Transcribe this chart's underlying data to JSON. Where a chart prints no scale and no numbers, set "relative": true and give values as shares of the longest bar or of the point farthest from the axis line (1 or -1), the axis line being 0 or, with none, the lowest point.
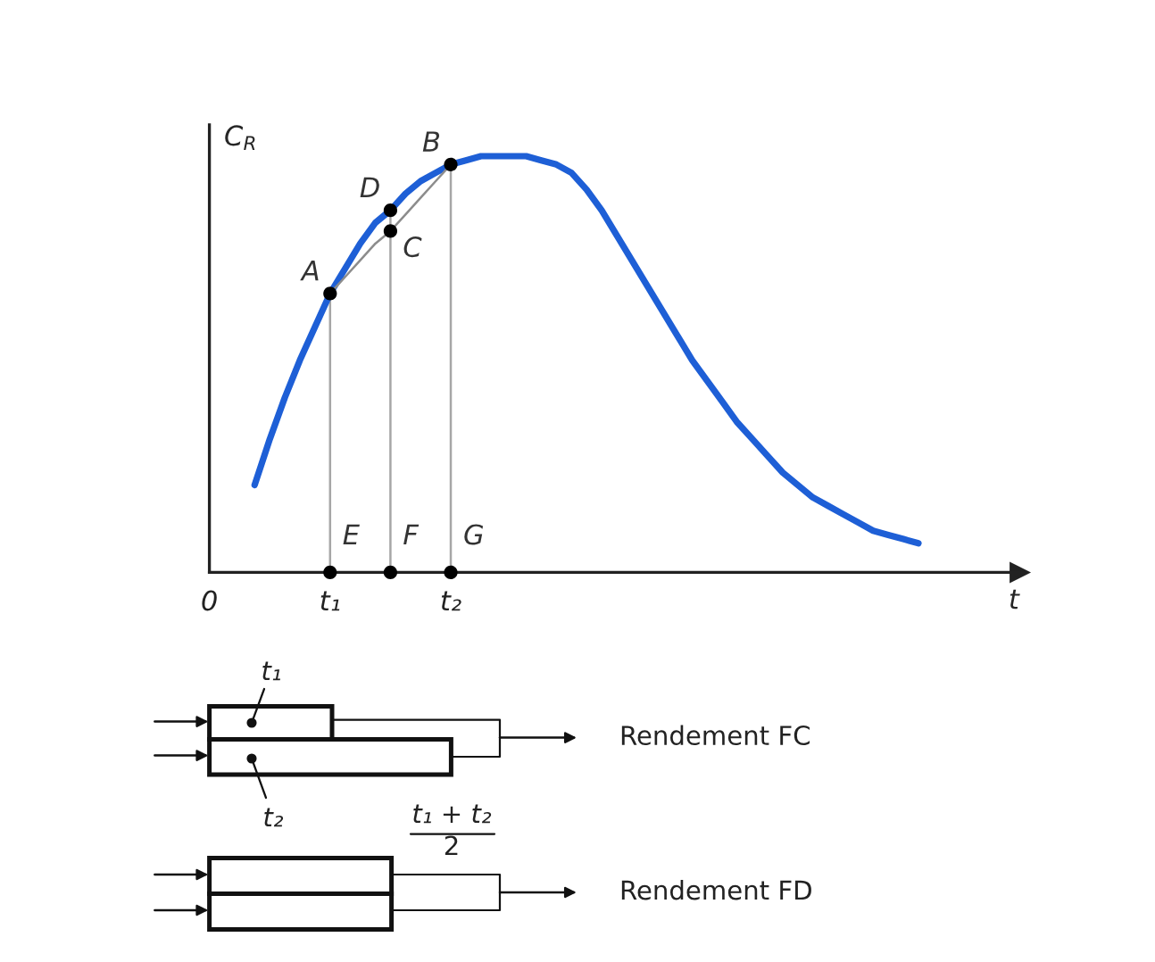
{
  "chart_data": {
    "type": "line",
    "relative": true,
    "ylabel": "C$_{R}$",
    "xlabel": "t",
    "tick_labels": "x",
    "categories": [
      "0",
      null,
      null,
      null,
      null,
      null,
      null,
      null,
      "t₁",
      null,
      null,
      null,
      null,
      null,
      null,
      null,
      "t₂",
      null,
      null,
      null,
      null,
      null,
      null,
      null,
      null,
      null,
      null,
      null,
      null,
      null,
      null,
      null,
      null,
      null,
      null,
      null,
      null,
      null,
      null,
      null,
      null,
      null,
      null,
      null,
      null,
      null,
      null,
      null,
      null,
      null,
      null,
      null,
      null,
      null
    ],
    "series": [
      {
        "color": "#1e5fd6",
        "values": [
          null,
          null,
          null,
          0.21,
          0.32,
          0.42,
          0.51,
          0.59,
          0.67,
          0.73,
          0.79,
          0.84,
          0.87,
          0.91,
          0.94,
          0.96,
          0.98,
          0.99,
          1.0,
          1.0,
          1.0,
          1.0,
          0.99,
          0.98,
          0.96,
          0.92,
          0.87,
          0.81,
          0.75,
          0.69,
          0.63,
          0.57,
          0.51,
          0.46,
          0.41,
          0.36,
          0.32,
          0.28,
          0.24,
          0.21,
          0.18,
          0.16,
          0.14,
          0.12,
          0.1,
          0.09,
          0.08,
          0.07,
          null,
          null,
          null,
          null,
          null,
          null
        ]
      },
      {
        "color": "#8c8c8c",
        "values": [
          null,
          null,
          null,
          null,
          null,
          null,
          null,
          null,
          0.67,
          0.71,
          0.75,
          0.79,
          0.82,
          0.86,
          0.9,
          0.94,
          0.98,
          null,
          null,
          null,
          null,
          null,
          null,
          null,
          null,
          null,
          null,
          null,
          null,
          null,
          null,
          null,
          null,
          null,
          null,
          null,
          null,
          null,
          null,
          null,
          null,
          null,
          null,
          null,
          null,
          null,
          null,
          null,
          null,
          null,
          null,
          null,
          null,
          null
        ]
      },
      {
        "type": "lollipop",
        "name": "A",
        "color": "#000000",
        "marker": "circle",
        "values": [
          null,
          null,
          null,
          null,
          null,
          null,
          null,
          null,
          0.67,
          null,
          null,
          null,
          null,
          null,
          null,
          null,
          null,
          null,
          null,
          null,
          null,
          null,
          null,
          null,
          null,
          null,
          null,
          null,
          null,
          null,
          null,
          null,
          null,
          null,
          null,
          null,
          null,
          null,
          null,
          null,
          null,
          null,
          null,
          null,
          null,
          null,
          null,
          null,
          null,
          null,
          null,
          null,
          null,
          null
        ]
      },
      {
        "type": "lollipop",
        "name": "D",
        "color": "#000000",
        "marker": "circle",
        "values": [
          null,
          null,
          null,
          null,
          null,
          null,
          null,
          null,
          null,
          null,
          null,
          null,
          0.87,
          null,
          null,
          null,
          null,
          null,
          null,
          null,
          null,
          null,
          null,
          null,
          null,
          null,
          null,
          null,
          null,
          null,
          null,
          null,
          null,
          null,
          null,
          null,
          null,
          null,
          null,
          null,
          null,
          null,
          null,
          null,
          null,
          null,
          null,
          null,
          null,
          null,
          null,
          null,
          null,
          null
        ]
      },
      {
        "type": "lollipop",
        "name": "B",
        "color": "#000000",
        "marker": "circle",
        "values": [
          null,
          null,
          null,
          null,
          null,
          null,
          null,
          null,
          null,
          null,
          null,
          null,
          null,
          null,
          null,
          null,
          0.98,
          null,
          null,
          null,
          null,
          null,
          null,
          null,
          null,
          null,
          null,
          null,
          null,
          null,
          null,
          null,
          null,
          null,
          null,
          null,
          null,
          null,
          null,
          null,
          null,
          null,
          null,
          null,
          null,
          null,
          null,
          null,
          null,
          null,
          null,
          null,
          null,
          null
        ]
      },
      {
        "type": "scatter",
        "name": "C",
        "color": "#000000",
        "marker": "circle",
        "values": [
          null,
          null,
          null,
          null,
          null,
          null,
          null,
          null,
          null,
          null,
          null,
          null,
          0.82,
          null,
          null,
          null,
          null,
          null,
          null,
          null,
          null,
          null,
          null,
          null,
          null,
          null,
          null,
          null,
          null,
          null,
          null,
          null,
          null,
          null,
          null,
          null,
          null,
          null,
          null,
          null,
          null,
          null,
          null,
          null,
          null,
          null,
          null,
          null,
          null,
          null,
          null,
          null,
          null,
          null
        ]
      },
      {
        "type": "scatter",
        "name": "E",
        "color": "#000000",
        "marker": "circle",
        "values": [
          null,
          null,
          null,
          null,
          null,
          null,
          null,
          null,
          0,
          null,
          null,
          null,
          null,
          null,
          null,
          null,
          null,
          null,
          null,
          null,
          null,
          null,
          null,
          null,
          null,
          null,
          null,
          null,
          null,
          null,
          null,
          null,
          null,
          null,
          null,
          null,
          null,
          null,
          null,
          null,
          null,
          null,
          null,
          null,
          null,
          null,
          null,
          null,
          null,
          null,
          null,
          null,
          null,
          null
        ]
      },
      {
        "type": "scatter",
        "name": "F",
        "color": "#000000",
        "marker": "circle",
        "values": [
          null,
          null,
          null,
          null,
          null,
          null,
          null,
          null,
          null,
          null,
          null,
          null,
          0,
          null,
          null,
          null,
          null,
          null,
          null,
          null,
          null,
          null,
          null,
          null,
          null,
          null,
          null,
          null,
          null,
          null,
          null,
          null,
          null,
          null,
          null,
          null,
          null,
          null,
          null,
          null,
          null,
          null,
          null,
          null,
          null,
          null,
          null,
          null,
          null,
          null,
          null,
          null,
          null,
          null
        ]
      },
      {
        "type": "scatter",
        "name": "G",
        "color": "#000000",
        "marker": "circle",
        "values": [
          null,
          null,
          null,
          null,
          null,
          null,
          null,
          null,
          null,
          null,
          null,
          null,
          null,
          null,
          null,
          null,
          0,
          null,
          null,
          null,
          null,
          null,
          null,
          null,
          null,
          null,
          null,
          null,
          null,
          null,
          null,
          null,
          null,
          null,
          null,
          null,
          null,
          null,
          null,
          null,
          null,
          null,
          null,
          null,
          null,
          null,
          null,
          null,
          null,
          null,
          null,
          null,
          null,
          null
        ]
      }
    ],
    "annotations": [
      "t₁",
      "t₂",
      "Rendement FC",
      "t₁ + t₂",
      "2",
      "Rendement FD"
    ]
  }
}
